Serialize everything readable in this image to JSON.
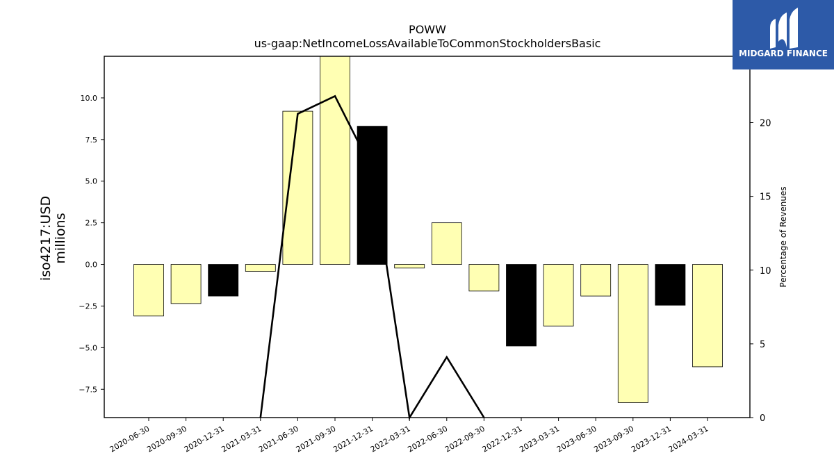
{
  "brand": {
    "name": "MIDGARD FINANCE",
    "color": "#2d5aa8",
    "icon": "midgard-logo-icon"
  },
  "chart_data": {
    "type": "bar",
    "title": "POWW",
    "subtitle": "us-gaap:NetIncomeLossAvailableToCommonStockholdersBasic",
    "ylabel": "iso4217:USD",
    "ylabel_unit": "millions",
    "y2label": "Percentage of Revenues",
    "categories": [
      "2020-06-30",
      "2020-09-30",
      "2020-12-31",
      "2021-03-31",
      "2021-06-30",
      "2021-09-30",
      "2021-12-31",
      "2022-03-31",
      "2022-06-30",
      "2022-09-30",
      "2022-12-31",
      "2023-03-31",
      "2023-06-30",
      "2023-09-30",
      "2023-12-31",
      "2024-03-31"
    ],
    "series": [
      {
        "axis": "left",
        "kind": "bar",
        "values": [
          -3.1,
          -2.35,
          -1.9,
          -0.42,
          9.2,
          12.5,
          8.3,
          -0.22,
          2.5,
          -1.6,
          -4.9,
          -3.7,
          -1.9,
          -8.3,
          -2.45,
          -6.15
        ],
        "fill": [
          "#ffffb3",
          "#ffffb3",
          "#000000",
          "#ffffb3",
          "#ffffb3",
          "#ffffb3",
          "#000000",
          "#ffffb3",
          "#ffffb3",
          "#ffffb3",
          "#000000",
          "#ffffb3",
          "#ffffb3",
          "#ffffb3",
          "#000000",
          "#ffffb3"
        ]
      },
      {
        "axis": "right",
        "kind": "line",
        "color": "#000000",
        "values": [
          null,
          null,
          null,
          0,
          20.6,
          21.8,
          16.8,
          0,
          4.1,
          0,
          null,
          null,
          null,
          null,
          null,
          null
        ]
      }
    ],
    "ylim": [
      -9.2,
      12.5
    ],
    "y2lim": [
      0,
      24.5
    ],
    "yticks": [
      -7.5,
      -5.0,
      -2.5,
      0.0,
      2.5,
      5.0,
      7.5,
      10.0
    ],
    "ytick_labels": [
      "−7.5",
      "−5.0",
      "−2.5",
      "0.0",
      "2.5",
      "5.0",
      "7.5",
      "10.0"
    ],
    "y2ticks": [
      0,
      5,
      10,
      15,
      20
    ],
    "y2tick_labels": [
      "0",
      "5",
      "10",
      "15",
      "20"
    ],
    "grid": false,
    "legend": "none"
  }
}
